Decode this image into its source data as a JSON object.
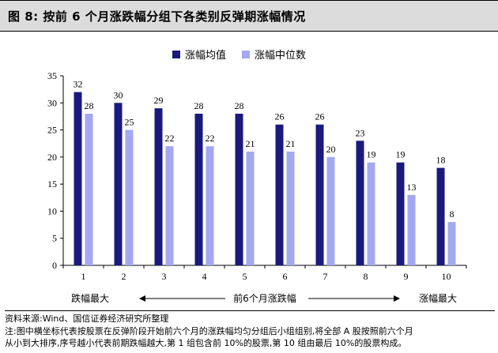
{
  "title": "图 8:  按前 6 个月涨跌幅分组下各类别反弹期涨幅情况",
  "legend": {
    "mean": "涨幅均值",
    "median": "涨幅中位数"
  },
  "colors": {
    "mean": "#1a1a7c",
    "median": "#a3a8f0",
    "title_bg": "#dcdcdc"
  },
  "axis_annotation": {
    "left": "跌幅最大",
    "center": "前6个月涨跌幅",
    "right": "涨幅最大"
  },
  "source_line": "资料来源:Wind、国信证券经济研究所整理",
  "note_line1": "注:图中横坐标代表按股票在反弹阶段开始前六个月的涨跌幅均匀分组后小组组别,将全部 A 股按照前六个月",
  "note_line2": "从小到大排序,序号越小代表前期跌幅越大,第 1 组包含前 10%的股票,第 10 组由最后 10%的股票构成。",
  "chart_data": {
    "type": "bar",
    "categories": [
      "1",
      "2",
      "3",
      "4",
      "5",
      "6",
      "7",
      "8",
      "9",
      "10"
    ],
    "series": [
      {
        "name": "涨幅均值",
        "values": [
          32,
          30,
          29,
          28,
          28,
          26,
          26,
          23,
          19,
          18
        ]
      },
      {
        "name": "涨幅中位数",
        "values": [
          28,
          25,
          22,
          22,
          21,
          21,
          20,
          19,
          13,
          8
        ]
      }
    ],
    "value_labels": [
      [
        "32",
        "30",
        "29",
        "28",
        "28",
        "26",
        "26",
        "23",
        "19",
        "18"
      ],
      [
        "28",
        "25",
        "22",
        "22",
        "21",
        "21",
        "20",
        "19",
        "13",
        "8"
      ]
    ],
    "ylim": [
      0,
      35
    ],
    "yticks": [
      0,
      5,
      10,
      15,
      20,
      25,
      30,
      35
    ],
    "grid": false,
    "legend_position": "top"
  }
}
